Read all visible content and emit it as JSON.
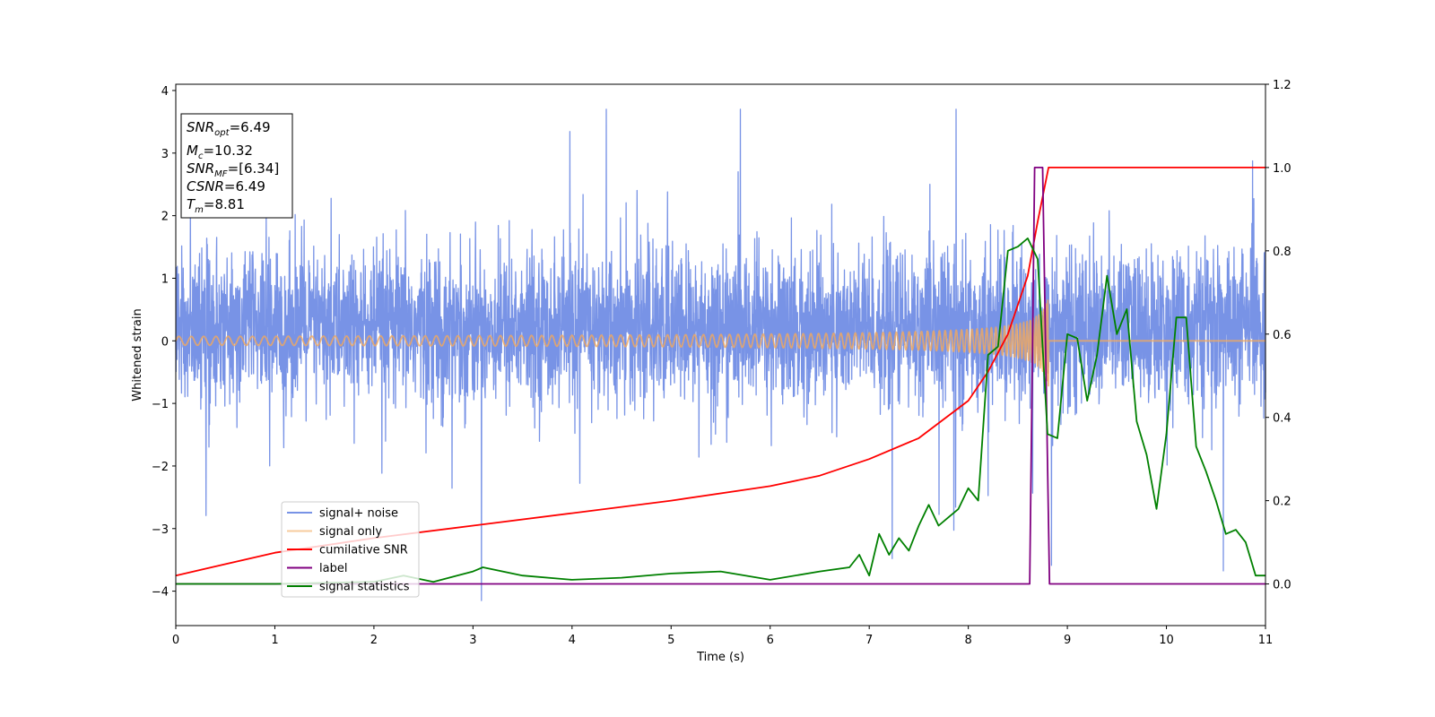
{
  "chart_data": {
    "type": "line",
    "xlabel": "Time (s)",
    "ylabel": "Whitened strain",
    "xlim": [
      0,
      11
    ],
    "ylim": [
      -4.55,
      4.1
    ],
    "y2lim": [
      -0.1,
      1.2
    ],
    "xticks": [
      "0",
      "1",
      "2",
      "3",
      "4",
      "5",
      "6",
      "7",
      "8",
      "9",
      "10",
      "11"
    ],
    "yticks": [
      "4",
      "3",
      "2",
      "1",
      "0",
      "−1",
      "−2",
      "−3",
      "−4"
    ],
    "y2ticks": [
      "1.2",
      "1.0",
      "0.8",
      "0.6",
      "0.4",
      "0.2",
      "0.0"
    ],
    "grid": false,
    "legend_position": "lower-left",
    "series": [
      {
        "name": "signal+ noise",
        "color": "#7893e6",
        "axis": "left",
        "noise": {
          "mean": 0.2,
          "sigma": 0.6,
          "clip_min": -4.15,
          "clip_max": 3.7,
          "samples": 4400
        }
      },
      {
        "name": "signal only",
        "color": "#f2a95c",
        "axis": "left",
        "chirp": {
          "merger_time": 8.81,
          "peak_amplitude": 0.75,
          "baseline": 0.0
        }
      },
      {
        "name": "cumilative SNR",
        "color": "#ff0000",
        "axis": "right",
        "x": [
          0,
          1,
          2,
          3,
          4,
          5,
          6,
          6.5,
          7,
          7.5,
          8,
          8.2,
          8.4,
          8.6,
          8.7,
          8.81,
          11
        ],
        "y": [
          0.02,
          0.075,
          0.11,
          0.14,
          0.17,
          0.2,
          0.235,
          0.26,
          0.3,
          0.35,
          0.44,
          0.51,
          0.6,
          0.74,
          0.87,
          1.0,
          1.0
        ]
      },
      {
        "name": "label",
        "color": "#800080",
        "axis": "right",
        "x": [
          0,
          8.62,
          8.67,
          8.75,
          8.82,
          11
        ],
        "y": [
          0,
          0,
          1.0,
          1.0,
          0,
          0
        ]
      },
      {
        "name": "signal statistics",
        "color": "#008000",
        "axis": "right",
        "x": [
          0,
          1,
          2,
          2.3,
          2.6,
          3,
          3.1,
          3.5,
          4,
          4.5,
          5,
          5.5,
          6,
          6.5,
          6.8,
          6.9,
          7,
          7.1,
          7.2,
          7.3,
          7.4,
          7.5,
          7.6,
          7.7,
          7.8,
          7.9,
          8,
          8.1,
          8.2,
          8.3,
          8.4,
          8.5,
          8.6,
          8.7,
          8.8,
          8.9,
          9,
          9.1,
          9.2,
          9.3,
          9.4,
          9.5,
          9.6,
          9.7,
          9.8,
          9.9,
          10,
          10.1,
          10.2,
          10.3,
          10.4,
          10.5,
          10.6,
          10.7,
          10.8,
          10.9,
          11
        ],
        "y": [
          0.0,
          0.0,
          0.005,
          0.02,
          0.005,
          0.03,
          0.04,
          0.02,
          0.01,
          0.015,
          0.025,
          0.03,
          0.01,
          0.03,
          0.04,
          0.07,
          0.02,
          0.12,
          0.07,
          0.11,
          0.08,
          0.14,
          0.19,
          0.14,
          0.16,
          0.18,
          0.23,
          0.2,
          0.55,
          0.57,
          0.8,
          0.81,
          0.83,
          0.78,
          0.36,
          0.35,
          0.6,
          0.59,
          0.44,
          0.55,
          0.74,
          0.6,
          0.66,
          0.39,
          0.31,
          0.18,
          0.36,
          0.64,
          0.64,
          0.33,
          0.27,
          0.2,
          0.12,
          0.13,
          0.1,
          0.02,
          0.02
        ]
      }
    ],
    "annotations": [
      {
        "main": "SNR",
        "sub": "opt",
        "rest": "=6.49",
        "italic": true
      },
      {
        "main": "M",
        "sub": "c",
        "rest": "=10.32",
        "italic": true
      },
      {
        "main": "SNR",
        "sub": "MF",
        "rest": "=[6.34]",
        "italic": true
      },
      {
        "main": "CSNR",
        "sub": "",
        "rest": "=6.49",
        "italic": true
      },
      {
        "main": "T",
        "sub": "m",
        "rest": "=8.81",
        "italic": true
      }
    ]
  }
}
